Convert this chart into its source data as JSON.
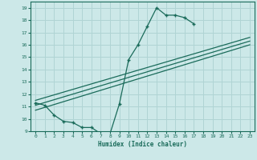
{
  "xlabel": "Humidex (Indice chaleur)",
  "xlim": [
    -0.5,
    23.5
  ],
  "ylim": [
    9,
    19.5
  ],
  "xticks": [
    0,
    1,
    2,
    3,
    4,
    5,
    6,
    7,
    8,
    9,
    10,
    11,
    12,
    13,
    14,
    15,
    16,
    17,
    18,
    19,
    20,
    21,
    22,
    23
  ],
  "yticks": [
    9,
    10,
    11,
    12,
    13,
    14,
    15,
    16,
    17,
    18,
    19
  ],
  "bg_color": "#cce8e8",
  "grid_color": "#b0d4d4",
  "line_color": "#1a6b5a",
  "curve1_x": [
    0,
    1,
    2,
    3,
    4,
    5,
    6,
    7,
    8,
    9,
    10,
    11,
    12,
    13,
    14,
    15,
    16,
    17
  ],
  "curve1_y": [
    11.3,
    11.1,
    10.3,
    9.8,
    9.7,
    9.3,
    9.3,
    8.8,
    8.8,
    11.2,
    14.8,
    16.0,
    17.5,
    19.0,
    18.4,
    18.4,
    18.2,
    17.7
  ],
  "line2_x": [
    0,
    23
  ],
  "line2_y": [
    11.5,
    16.6
  ],
  "line3_x": [
    0,
    23
  ],
  "line3_y": [
    11.1,
    16.3
  ],
  "line4_x": [
    0,
    23
  ],
  "line4_y": [
    10.7,
    16.0
  ]
}
